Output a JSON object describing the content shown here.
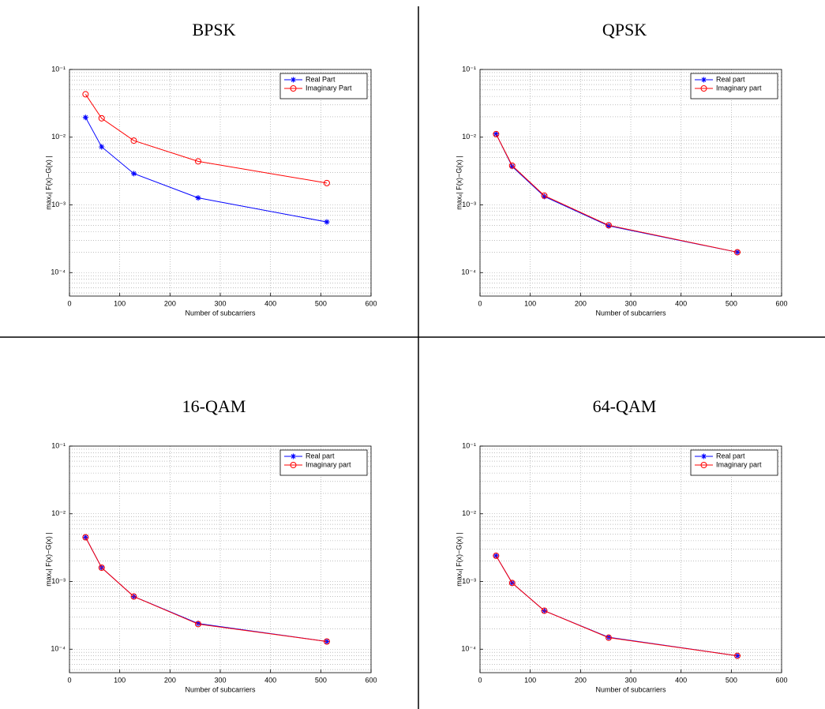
{
  "chart_data": [
    {
      "type": "line",
      "title": "BPSK",
      "x_label": "Number of subcarriers",
      "y_label": "maxₓ| F(x)−G(x) |",
      "x": [
        32,
        64,
        128,
        256,
        512
      ],
      "xlim": [
        0,
        600
      ],
      "xticks": [
        0,
        100,
        200,
        300,
        400,
        500,
        600
      ],
      "ylim": [
        4.5e-05,
        0.1
      ],
      "yscale": "log",
      "grid": true,
      "legend": "upper right",
      "yticks": [
        {
          "value": 0.0001,
          "label": "10⁻⁴"
        },
        {
          "value": 0.001,
          "label": "10⁻³"
        },
        {
          "value": 0.01,
          "label": "10⁻²"
        },
        {
          "value": 0.1,
          "label": "10⁻¹"
        }
      ],
      "series": [
        {
          "name": "Real Part",
          "color": "#0000ff",
          "marker": "star",
          "values": [
            0.0196,
            0.0072,
            0.0029,
            0.00127,
            0.00056
          ]
        },
        {
          "name": "Imaginary Part",
          "color": "#ff0000",
          "marker": "circle",
          "values": [
            0.043,
            0.019,
            0.0089,
            0.0044,
            0.0021
          ]
        }
      ]
    },
    {
      "type": "line",
      "title": "QPSK",
      "x_label": "Number of subcarriers",
      "y_label": "maxₓ| F(x)−G(x) |",
      "x": [
        32,
        64,
        128,
        256,
        512
      ],
      "xlim": [
        0,
        600
      ],
      "xticks": [
        0,
        100,
        200,
        300,
        400,
        500,
        600
      ],
      "ylim": [
        4.5e-05,
        0.1
      ],
      "yscale": "log",
      "grid": true,
      "legend": "upper right",
      "yticks": [
        {
          "value": 0.0001,
          "label": "10⁻⁴"
        },
        {
          "value": 0.001,
          "label": "10⁻³"
        },
        {
          "value": 0.01,
          "label": "10⁻²"
        },
        {
          "value": 0.1,
          "label": "10⁻¹"
        }
      ],
      "series": [
        {
          "name": "Real part",
          "color": "#0000ff",
          "marker": "star",
          "values": [
            0.0112,
            0.0037,
            0.00133,
            0.00049,
            0.0002
          ]
        },
        {
          "name": "Imaginary part",
          "color": "#ff0000",
          "marker": "circle",
          "values": [
            0.0111,
            0.0038,
            0.00137,
            0.0005,
            0.0002
          ]
        }
      ]
    },
    {
      "type": "line",
      "title": "16-QAM",
      "x_label": "Number of subcarriers",
      "y_label": "maxₓ| F(x)−G(x) |",
      "x": [
        32,
        64,
        128,
        256,
        512
      ],
      "xlim": [
        0,
        600
      ],
      "xticks": [
        0,
        100,
        200,
        300,
        400,
        500,
        600
      ],
      "ylim": [
        4.5e-05,
        0.1
      ],
      "yscale": "log",
      "grid": true,
      "legend": "upper right",
      "yticks": [
        {
          "value": 0.0001,
          "label": "10⁻⁴"
        },
        {
          "value": 0.001,
          "label": "10⁻³"
        },
        {
          "value": 0.01,
          "label": "10⁻²"
        },
        {
          "value": 0.1,
          "label": "10⁻¹"
        }
      ],
      "series": [
        {
          "name": "Real part",
          "color": "#0000ff",
          "marker": "star",
          "values": [
            0.0045,
            0.0016,
            0.0006,
            0.00024,
            0.00013
          ]
        },
        {
          "name": "Imaginary part",
          "color": "#ff0000",
          "marker": "circle",
          "values": [
            0.0045,
            0.0016,
            0.0006,
            0.000235,
            0.00013
          ]
        }
      ]
    },
    {
      "type": "line",
      "title": "64-QAM",
      "x_label": "Number of subcarriers",
      "y_label": "maxₓ| F(x)−G(x) |",
      "x": [
        32,
        64,
        128,
        256,
        512
      ],
      "xlim": [
        0,
        600
      ],
      "xticks": [
        0,
        100,
        200,
        300,
        400,
        500,
        600
      ],
      "ylim": [
        4.5e-05,
        0.1
      ],
      "yscale": "log",
      "grid": true,
      "legend": "upper right",
      "yticks": [
        {
          "value": 0.0001,
          "label": "10⁻⁴"
        },
        {
          "value": 0.001,
          "label": "10⁻³"
        },
        {
          "value": 0.01,
          "label": "10⁻²"
        },
        {
          "value": 0.1,
          "label": "10⁻¹"
        }
      ],
      "series": [
        {
          "name": "Real part",
          "color": "#0000ff",
          "marker": "star",
          "values": [
            0.0024,
            0.00095,
            0.00037,
            0.00015,
            8e-05
          ]
        },
        {
          "name": "Imaginary part",
          "color": "#ff0000",
          "marker": "circle",
          "values": [
            0.0024,
            0.00095,
            0.00037,
            0.000148,
            8e-05
          ]
        }
      ]
    }
  ]
}
